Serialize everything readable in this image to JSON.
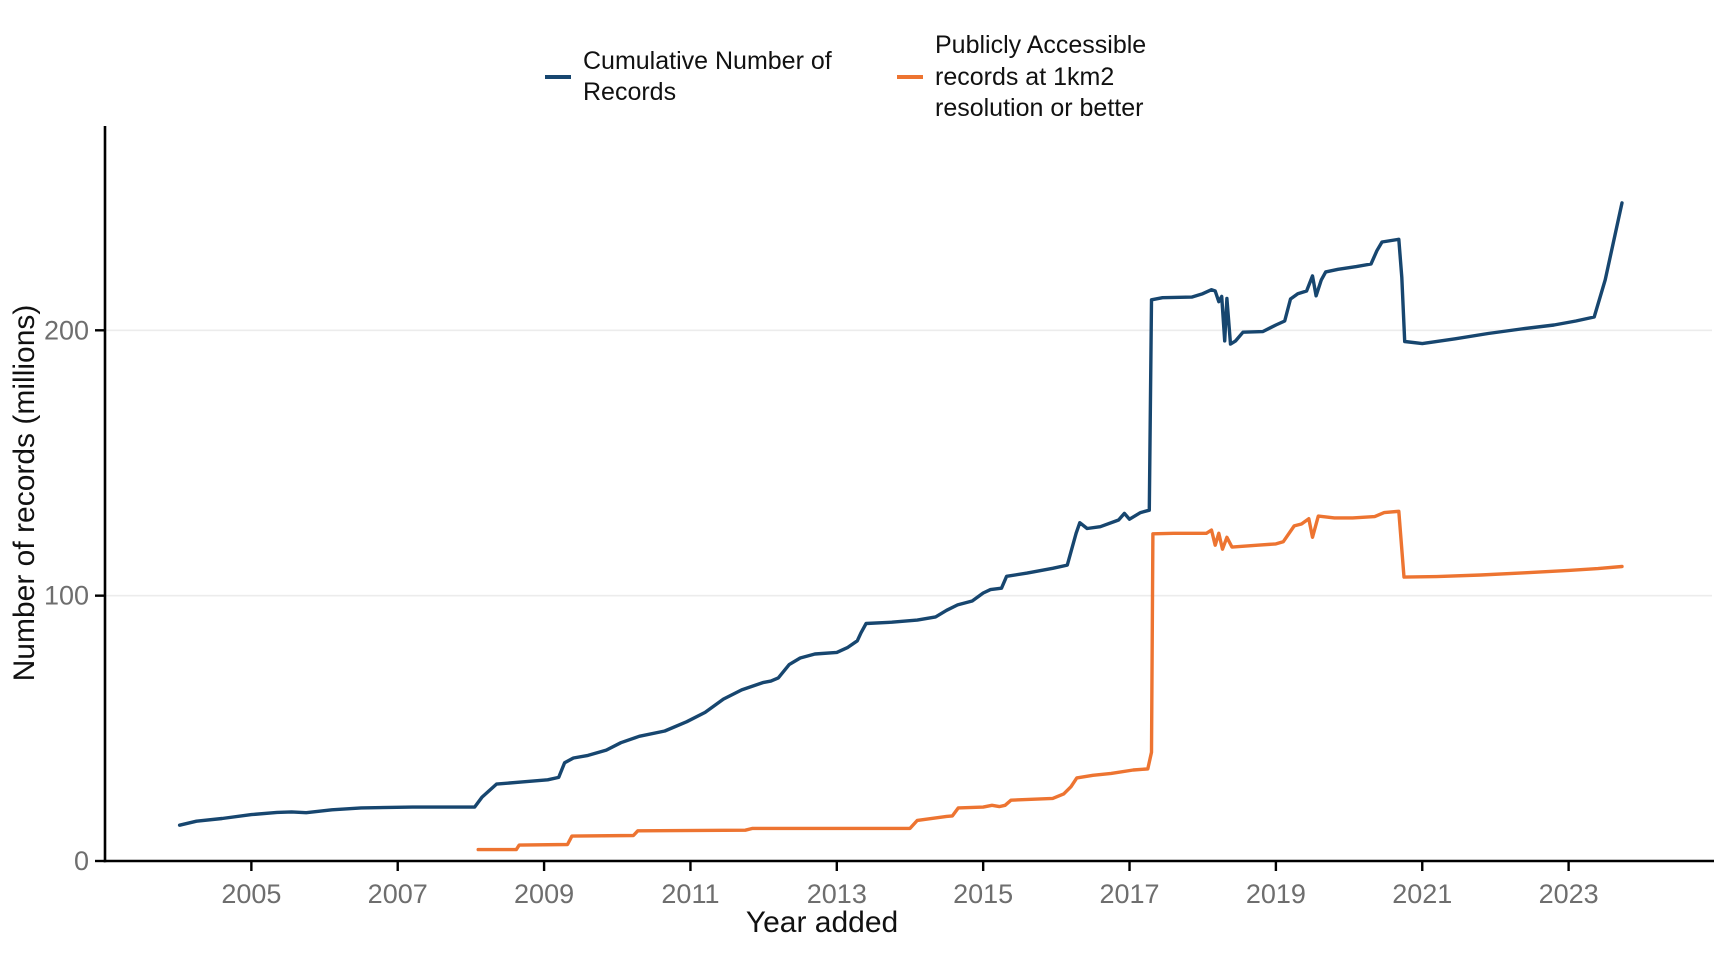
{
  "chart_data": {
    "type": "line",
    "title": "",
    "xlabel": "Year added",
    "ylabel": "Number of records (millions)",
    "x_ticks": [
      2005,
      2007,
      2009,
      2011,
      2013,
      2015,
      2017,
      2019,
      2021,
      2023
    ],
    "y_ticks": [
      0,
      100,
      200
    ],
    "xlim": [
      2003.0,
      2024.85
    ],
    "ylim": [
      0,
      277
    ],
    "grid": "horizontal-only",
    "legend_position": "top-center",
    "colors": {
      "axis": "#000000",
      "grid": "#ececec",
      "tick_text": "#6e6e6e"
    },
    "series": [
      {
        "id": "cumulative-records",
        "name": "Cumulative Number of Records",
        "color": "#17466F",
        "points": [
          [
            2004.02,
            13.5
          ],
          [
            2004.25,
            15
          ],
          [
            2004.6,
            16
          ],
          [
            2005.0,
            17.5
          ],
          [
            2005.35,
            18.3
          ],
          [
            2005.55,
            18.5
          ],
          [
            2005.75,
            18.2
          ],
          [
            2006.1,
            19.3
          ],
          [
            2006.5,
            20
          ],
          [
            2007.2,
            20.3
          ],
          [
            2008.05,
            20.3
          ],
          [
            2008.15,
            24
          ],
          [
            2008.35,
            29
          ],
          [
            2008.7,
            29.8
          ],
          [
            2009.05,
            30.6
          ],
          [
            2009.2,
            31.5
          ],
          [
            2009.28,
            37
          ],
          [
            2009.4,
            38.8
          ],
          [
            2009.6,
            39.8
          ],
          [
            2009.85,
            41.8
          ],
          [
            2010.05,
            44.6
          ],
          [
            2010.3,
            47
          ],
          [
            2010.65,
            49
          ],
          [
            2010.95,
            52.5
          ],
          [
            2011.2,
            56
          ],
          [
            2011.45,
            61
          ],
          [
            2011.7,
            64.5
          ],
          [
            2012.0,
            67.3
          ],
          [
            2012.1,
            67.8
          ],
          [
            2012.2,
            69
          ],
          [
            2012.35,
            74
          ],
          [
            2012.5,
            76.5
          ],
          [
            2012.7,
            78
          ],
          [
            2013.0,
            78.6
          ],
          [
            2013.15,
            80.5
          ],
          [
            2013.28,
            83
          ],
          [
            2013.33,
            86
          ],
          [
            2013.4,
            89.5
          ],
          [
            2013.75,
            90
          ],
          [
            2014.1,
            90.8
          ],
          [
            2014.35,
            92
          ],
          [
            2014.5,
            94.5
          ],
          [
            2014.65,
            96.5
          ],
          [
            2014.85,
            98
          ],
          [
            2015.0,
            101
          ],
          [
            2015.1,
            102.3
          ],
          [
            2015.25,
            102.8
          ],
          [
            2015.32,
            107.3
          ],
          [
            2015.6,
            108.5
          ],
          [
            2015.95,
            110.3
          ],
          [
            2016.15,
            111.5
          ],
          [
            2016.27,
            123.5
          ],
          [
            2016.32,
            127.5
          ],
          [
            2016.42,
            125.3
          ],
          [
            2016.6,
            126
          ],
          [
            2016.85,
            128.5
          ],
          [
            2016.93,
            131
          ],
          [
            2017.0,
            128.8
          ],
          [
            2017.15,
            131.3
          ],
          [
            2017.27,
            132.2
          ],
          [
            2017.3,
            211.5
          ],
          [
            2017.45,
            212.3
          ],
          [
            2017.85,
            212.5
          ],
          [
            2018.0,
            213.8
          ],
          [
            2018.12,
            215.3
          ],
          [
            2018.17,
            214.8
          ],
          [
            2018.22,
            210.8
          ],
          [
            2018.26,
            212.8
          ],
          [
            2018.3,
            196
          ],
          [
            2018.33,
            212
          ],
          [
            2018.38,
            194.8
          ],
          [
            2018.45,
            196
          ],
          [
            2018.55,
            199.3
          ],
          [
            2018.82,
            199.5
          ],
          [
            2019.0,
            202
          ],
          [
            2019.12,
            203.5
          ],
          [
            2019.2,
            211.8
          ],
          [
            2019.3,
            213.8
          ],
          [
            2019.42,
            214.8
          ],
          [
            2019.5,
            220.5
          ],
          [
            2019.55,
            213
          ],
          [
            2019.62,
            219
          ],
          [
            2019.68,
            222
          ],
          [
            2019.85,
            223
          ],
          [
            2020.1,
            224
          ],
          [
            2020.3,
            225
          ],
          [
            2020.38,
            230
          ],
          [
            2020.45,
            233.3
          ],
          [
            2020.68,
            234.3
          ],
          [
            2020.72,
            220
          ],
          [
            2020.76,
            195.8
          ],
          [
            2021.0,
            195
          ],
          [
            2021.45,
            196.8
          ],
          [
            2021.9,
            198.8
          ],
          [
            2022.35,
            200.5
          ],
          [
            2022.8,
            202
          ],
          [
            2023.1,
            203.5
          ],
          [
            2023.35,
            205
          ],
          [
            2023.5,
            219
          ],
          [
            2023.73,
            248
          ]
        ]
      },
      {
        "id": "public-1km2-records",
        "name": "Publicly Accessible records at 1km2 resolution or better",
        "color": "#ED7431",
        "points": [
          [
            2008.1,
            4.3
          ],
          [
            2008.62,
            4.3
          ],
          [
            2008.66,
            6
          ],
          [
            2009.32,
            6.2
          ],
          [
            2009.38,
            9.4
          ],
          [
            2010.22,
            9.6
          ],
          [
            2010.28,
            11.4
          ],
          [
            2011.75,
            11.6
          ],
          [
            2011.85,
            12.3
          ],
          [
            2014.0,
            12.3
          ],
          [
            2014.1,
            15.3
          ],
          [
            2014.5,
            16.8
          ],
          [
            2014.58,
            17
          ],
          [
            2014.66,
            20
          ],
          [
            2015.0,
            20.3
          ],
          [
            2015.12,
            21
          ],
          [
            2015.22,
            20.5
          ],
          [
            2015.3,
            21
          ],
          [
            2015.38,
            22.9
          ],
          [
            2015.95,
            23.6
          ],
          [
            2016.1,
            25.3
          ],
          [
            2016.2,
            28
          ],
          [
            2016.28,
            31.3
          ],
          [
            2016.5,
            32.3
          ],
          [
            2016.75,
            33
          ],
          [
            2017.05,
            34.3
          ],
          [
            2017.25,
            34.7
          ],
          [
            2017.3,
            41
          ],
          [
            2017.32,
            123.3
          ],
          [
            2017.6,
            123.5
          ],
          [
            2018.05,
            123.5
          ],
          [
            2018.12,
            124.7
          ],
          [
            2018.17,
            119
          ],
          [
            2018.22,
            123.5
          ],
          [
            2018.27,
            117.5
          ],
          [
            2018.33,
            122
          ],
          [
            2018.4,
            118.3
          ],
          [
            2018.75,
            119
          ],
          [
            2019.0,
            119.5
          ],
          [
            2019.1,
            120.3
          ],
          [
            2019.25,
            126.3
          ],
          [
            2019.35,
            127
          ],
          [
            2019.45,
            129
          ],
          [
            2019.5,
            122
          ],
          [
            2019.58,
            130
          ],
          [
            2019.8,
            129.3
          ],
          [
            2020.05,
            129.3
          ],
          [
            2020.35,
            129.8
          ],
          [
            2020.48,
            131.3
          ],
          [
            2020.68,
            131.8
          ],
          [
            2020.75,
            107
          ],
          [
            2021.2,
            107.2
          ],
          [
            2021.8,
            107.8
          ],
          [
            2022.4,
            108.6
          ],
          [
            2023.0,
            109.5
          ],
          [
            2023.4,
            110.2
          ],
          [
            2023.73,
            111
          ]
        ]
      }
    ]
  }
}
